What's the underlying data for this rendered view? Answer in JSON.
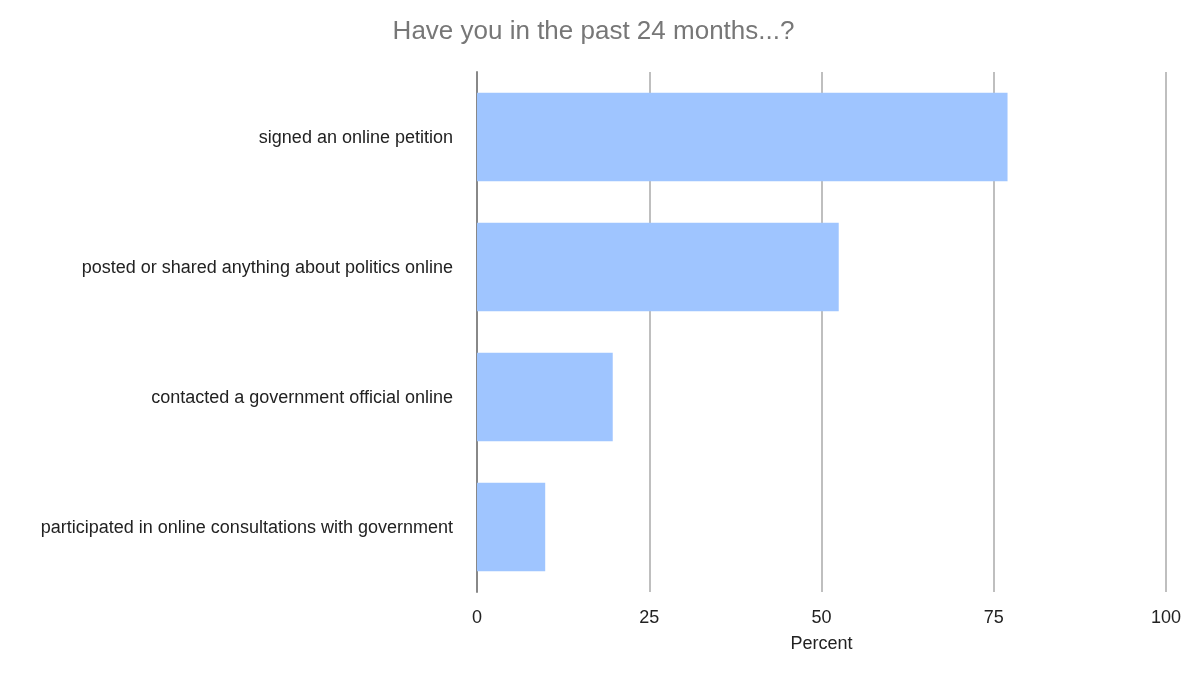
{
  "chart_data": {
    "type": "bar",
    "orientation": "horizontal",
    "title": "Have you in the past 24 months...?",
    "xlabel": "Percent",
    "categories": [
      "signed an online petition",
      "posted or shared anything about politics online",
      "contacted a government official online",
      "participated in online consultations with government"
    ],
    "values": [
      77,
      52.5,
      19.7,
      9.9
    ],
    "color": "#9fc5ff",
    "xlim": [
      0,
      100
    ],
    "xticks": [
      0,
      25,
      50,
      75,
      100
    ],
    "grid": "x"
  }
}
